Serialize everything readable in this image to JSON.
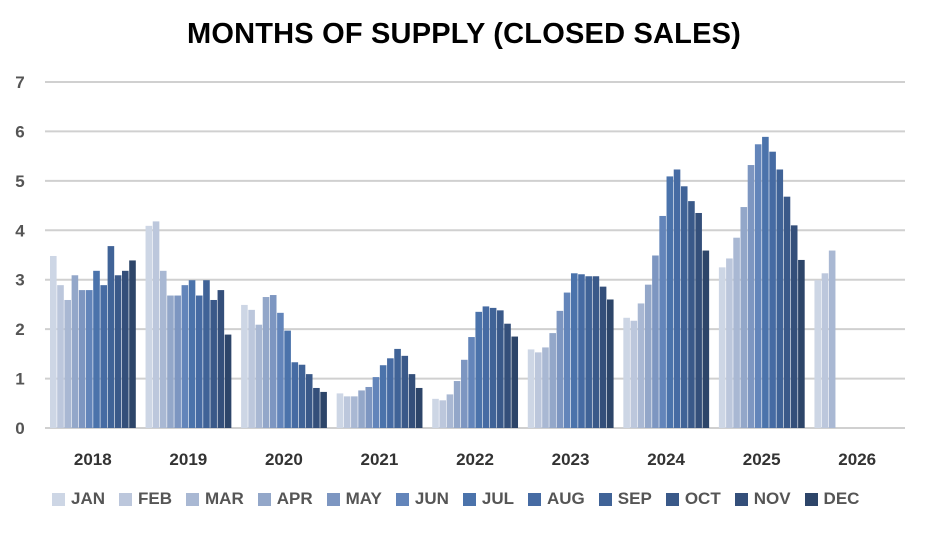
{
  "chart_data": {
    "type": "bar",
    "title": "MONTHS OF SUPPLY (CLOSED SALES)",
    "xlabel": "",
    "ylabel": "",
    "ylim": [
      0,
      7
    ],
    "yticks": [
      "0",
      "1",
      "2",
      "3",
      "4",
      "5",
      "6",
      "7"
    ],
    "grid": true,
    "legend_position": "bottom",
    "categories": [
      "2018",
      "2019",
      "2020",
      "2021",
      "2022",
      "2023",
      "2024",
      "2025",
      "2026"
    ],
    "series": [
      {
        "name": "JAN",
        "color": "#cdd6e5",
        "values": [
          3.48,
          4.09,
          2.49,
          0.7,
          0.59,
          1.59,
          2.23,
          3.25,
          2.99
        ]
      },
      {
        "name": "FEB",
        "color": "#bcc7dc",
        "values": [
          2.89,
          4.18,
          2.39,
          0.64,
          0.56,
          1.53,
          2.17,
          3.43,
          3.13
        ]
      },
      {
        "name": "MAR",
        "color": "#a9b8d3",
        "values": [
          2.59,
          3.18,
          2.09,
          0.64,
          0.68,
          1.63,
          2.52,
          3.85,
          3.59
        ]
      },
      {
        "name": "APR",
        "color": "#93a7c9",
        "values": [
          3.09,
          2.68,
          2.65,
          0.76,
          0.95,
          1.92,
          2.9,
          4.47,
          null
        ]
      },
      {
        "name": "MAY",
        "color": "#7d96c1",
        "values": [
          2.79,
          2.68,
          2.69,
          0.83,
          1.38,
          2.37,
          3.49,
          5.32,
          null
        ]
      },
      {
        "name": "JUN",
        "color": "#6385ba",
        "values": [
          2.79,
          2.89,
          2.33,
          1.03,
          1.84,
          2.74,
          4.29,
          5.74,
          null
        ]
      },
      {
        "name": "JUL",
        "color": "#4b73ab",
        "values": [
          3.18,
          2.99,
          1.97,
          1.27,
          2.35,
          3.13,
          5.09,
          5.89,
          null
        ]
      },
      {
        "name": "AUG",
        "color": "#466ba3",
        "values": [
          2.89,
          2.68,
          1.33,
          1.41,
          2.46,
          3.11,
          5.23,
          5.59,
          null
        ]
      },
      {
        "name": "SEP",
        "color": "#406397",
        "values": [
          3.68,
          2.99,
          1.28,
          1.6,
          2.43,
          3.07,
          4.89,
          5.23,
          null
        ]
      },
      {
        "name": "OCT",
        "color": "#3a5989",
        "values": [
          3.09,
          2.59,
          1.09,
          1.46,
          2.38,
          3.07,
          4.59,
          4.68,
          null
        ]
      },
      {
        "name": "NOV",
        "color": "#344f7a",
        "values": [
          3.18,
          2.79,
          0.81,
          1.09,
          2.11,
          2.86,
          4.35,
          4.1,
          null
        ]
      },
      {
        "name": "DEC",
        "color": "#2d4569",
        "values": [
          3.39,
          1.89,
          0.73,
          0.81,
          1.85,
          2.6,
          3.59,
          3.4,
          null
        ]
      }
    ]
  }
}
